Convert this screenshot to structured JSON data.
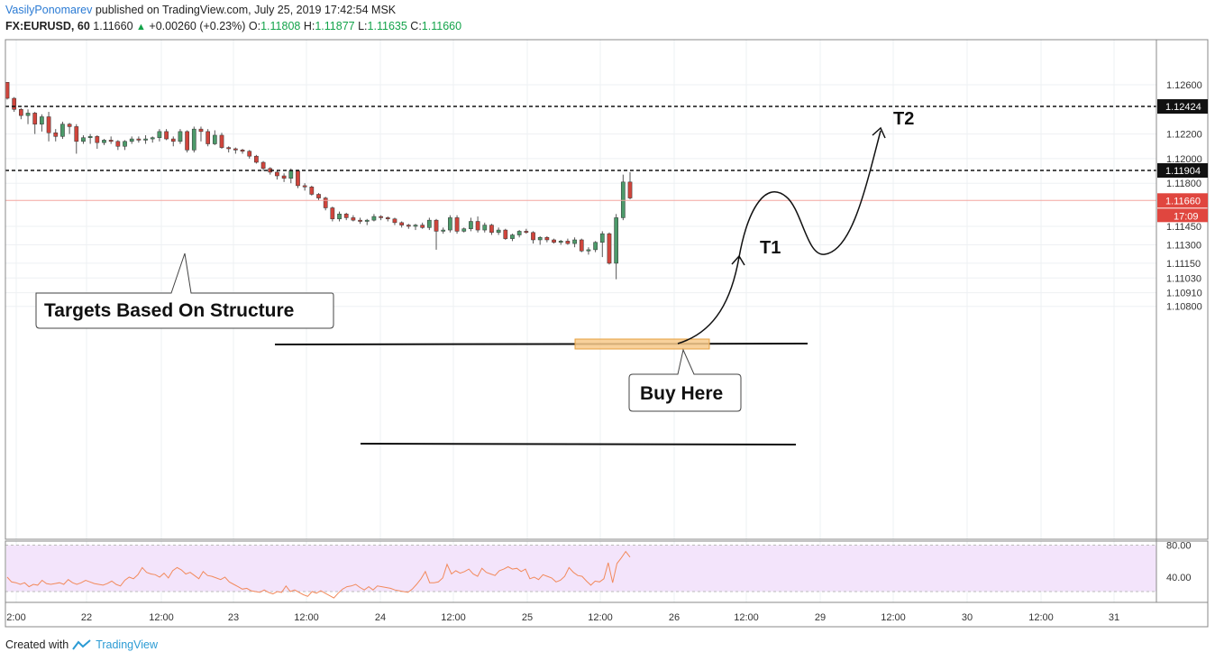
{
  "header": {
    "author": "VasilyPonomarev",
    "published": "published on TradingView.com, July 25, 2019 17:42:54 MSK",
    "symbol": "FX:EURUSD, 60",
    "last": "1.11660",
    "change": "+0.00260 (+0.23%)",
    "o_label": "O:",
    "o_value": "1.11808",
    "h_label": "H:",
    "h_value": "1.11877",
    "l_label": "L:",
    "l_value": "1.11635",
    "c_label": "C:",
    "c_value": "1.11660"
  },
  "footer": {
    "created_with": "Created with",
    "brand": "TradingView"
  },
  "annotations": {
    "targets": "Targets Based On Structure",
    "buy": "Buy Here",
    "t1": "T1",
    "t2": "T2"
  },
  "colors": {
    "up": "#4c9a6a",
    "down": "#d0453c",
    "rsi": "#f28a5c",
    "rsi_band": "#f3e4fb",
    "buy_zone": "#f7c98a"
  },
  "chart_data": {
    "type": "candlestick",
    "symbol": "FX:EURUSD",
    "timeframe": "60",
    "ylim": [
      1.1075,
      1.1273
    ],
    "y_ticks": [
      "1.12600",
      "1.12200",
      "1.12000",
      "1.11800",
      "1.11450",
      "1.11300",
      "1.11150",
      "1.11030",
      "1.10910",
      "1.10800"
    ],
    "y_tick_values": [
      1.126,
      1.122,
      1.12,
      1.118,
      1.1145,
      1.113,
      1.1115,
      1.1103,
      1.1091,
      1.108
    ],
    "x_ticks": [
      "2:00",
      "22",
      "12:00",
      "23",
      "12:00",
      "24",
      "12:00",
      "25",
      "12:00",
      "26",
      "12:00",
      "29",
      "12:00",
      "30",
      "12:00",
      "31"
    ],
    "price_labels": [
      {
        "text": "1.12424",
        "value": 1.12424
      },
      {
        "text": "1.11904",
        "value": 1.11904
      },
      {
        "text": "1.11660",
        "value": 1.1166,
        "countdown": "17:09"
      }
    ],
    "target_lines": [
      1.12424,
      1.11904
    ],
    "support_line": 1.1153,
    "lower_line": 1.1114,
    "buy_zone": [
      1.1152,
      1.1155
    ],
    "candles": [
      [
        1.1262,
        1.1262,
        1.1248,
        1.1249
      ],
      [
        1.1249,
        1.125,
        1.1238,
        1.124
      ],
      [
        1.124,
        1.1241,
        1.1232,
        1.1235
      ],
      [
        1.1235,
        1.124,
        1.1228,
        1.1237
      ],
      [
        1.1237,
        1.1238,
        1.122,
        1.1228
      ],
      [
        1.1228,
        1.1236,
        1.1222,
        1.1234
      ],
      [
        1.1234,
        1.1238,
        1.1214,
        1.1221
      ],
      [
        1.1221,
        1.1224,
        1.1214,
        1.1218
      ],
      [
        1.1218,
        1.123,
        1.1216,
        1.1228
      ],
      [
        1.1228,
        1.1229,
        1.122,
        1.1226
      ],
      [
        1.1226,
        1.1228,
        1.1204,
        1.1214
      ],
      [
        1.1214,
        1.1219,
        1.1212,
        1.1217
      ],
      [
        1.1217,
        1.122,
        1.1212,
        1.1218
      ],
      [
        1.1218,
        1.1219,
        1.1208,
        1.1213
      ],
      [
        1.1213,
        1.1216,
        1.1211,
        1.1215
      ],
      [
        1.1215,
        1.1218,
        1.1212,
        1.1214
      ],
      [
        1.1214,
        1.1215,
        1.1207,
        1.121
      ],
      [
        1.121,
        1.1215,
        1.1207,
        1.1214
      ],
      [
        1.1214,
        1.1218,
        1.1212,
        1.1216
      ],
      [
        1.1216,
        1.1218,
        1.1213,
        1.1215
      ],
      [
        1.1215,
        1.1219,
        1.1212,
        1.1216
      ],
      [
        1.1216,
        1.1218,
        1.1213,
        1.1217
      ],
      [
        1.1217,
        1.1224,
        1.1214,
        1.1222
      ],
      [
        1.1222,
        1.1224,
        1.1215,
        1.1216
      ],
      [
        1.1216,
        1.1218,
        1.121,
        1.1214
      ],
      [
        1.1214,
        1.1224,
        1.1212,
        1.1222
      ],
      [
        1.1222,
        1.1223,
        1.1205,
        1.1207
      ],
      [
        1.1207,
        1.1226,
        1.1205,
        1.1224
      ],
      [
        1.1224,
        1.1226,
        1.1214,
        1.1222
      ],
      [
        1.1222,
        1.1224,
        1.121,
        1.1212
      ],
      [
        1.1212,
        1.1223,
        1.1211,
        1.1219
      ],
      [
        1.1219,
        1.1221,
        1.1208,
        1.1209
      ],
      [
        1.1209,
        1.121,
        1.1205,
        1.1208
      ],
      [
        1.1208,
        1.1209,
        1.1204,
        1.1207
      ],
      [
        1.1207,
        1.1208,
        1.1204,
        1.1206
      ],
      [
        1.1206,
        1.1207,
        1.12,
        1.1202
      ],
      [
        1.1202,
        1.1203,
        1.1196,
        1.1197
      ],
      [
        1.1197,
        1.1198,
        1.119,
        1.1192
      ],
      [
        1.1192,
        1.1193,
        1.1187,
        1.1189
      ],
      [
        1.1189,
        1.119,
        1.1183,
        1.1186
      ],
      [
        1.1186,
        1.1188,
        1.1181,
        1.1184
      ],
      [
        1.1184,
        1.1192,
        1.118,
        1.119
      ],
      [
        1.119,
        1.1191,
        1.1176,
        1.1178
      ],
      [
        1.1178,
        1.118,
        1.1174,
        1.1177
      ],
      [
        1.1177,
        1.1178,
        1.117,
        1.1171
      ],
      [
        1.1171,
        1.1172,
        1.1166,
        1.1168
      ],
      [
        1.1168,
        1.1169,
        1.1158,
        1.116
      ],
      [
        1.116,
        1.1161,
        1.1149,
        1.1151
      ],
      [
        1.1151,
        1.1157,
        1.1149,
        1.1155
      ],
      [
        1.1155,
        1.1156,
        1.115,
        1.1152
      ],
      [
        1.1152,
        1.1154,
        1.1149,
        1.115
      ],
      [
        1.115,
        1.1152,
        1.1147,
        1.1149
      ],
      [
        1.1149,
        1.1151,
        1.1146,
        1.115
      ],
      [
        1.115,
        1.1155,
        1.1149,
        1.1153
      ],
      [
        1.1153,
        1.1154,
        1.115,
        1.1152
      ],
      [
        1.1152,
        1.1153,
        1.1149,
        1.1151
      ],
      [
        1.1151,
        1.1152,
        1.1146,
        1.1148
      ],
      [
        1.1148,
        1.1149,
        1.1144,
        1.1146
      ],
      [
        1.1146,
        1.1147,
        1.1143,
        1.1145
      ],
      [
        1.1145,
        1.1147,
        1.1142,
        1.1146
      ],
      [
        1.1146,
        1.1148,
        1.1143,
        1.1144
      ],
      [
        1.1144,
        1.1152,
        1.1142,
        1.115
      ],
      [
        1.115,
        1.1151,
        1.1126,
        1.1141
      ],
      [
        1.1141,
        1.1144,
        1.1139,
        1.1142
      ],
      [
        1.1142,
        1.1154,
        1.114,
        1.1152
      ],
      [
        1.1152,
        1.1154,
        1.1139,
        1.1141
      ],
      [
        1.1141,
        1.1144,
        1.114,
        1.1143
      ],
      [
        1.1143,
        1.1152,
        1.1141,
        1.1149
      ],
      [
        1.1149,
        1.1153,
        1.114,
        1.1142
      ],
      [
        1.1142,
        1.1148,
        1.114,
        1.1146
      ],
      [
        1.1146,
        1.1147,
        1.1138,
        1.114
      ],
      [
        1.114,
        1.1144,
        1.1138,
        1.1142
      ],
      [
        1.1142,
        1.1143,
        1.1134,
        1.1135
      ],
      [
        1.1135,
        1.1139,
        1.1133,
        1.1138
      ],
      [
        1.1138,
        1.1142,
        1.1136,
        1.1141
      ],
      [
        1.1141,
        1.1143,
        1.1139,
        1.114
      ],
      [
        1.114,
        1.1141,
        1.1131,
        1.1134
      ],
      [
        1.1134,
        1.1137,
        1.113,
        1.1136
      ],
      [
        1.1136,
        1.1137,
        1.1132,
        1.1134
      ],
      [
        1.1134,
        1.1135,
        1.1131,
        1.1132
      ],
      [
        1.1132,
        1.1134,
        1.113,
        1.1133
      ],
      [
        1.1133,
        1.1135,
        1.113,
        1.1131
      ],
      [
        1.1131,
        1.1136,
        1.1128,
        1.1134
      ],
      [
        1.1134,
        1.1135,
        1.1124,
        1.1125
      ],
      [
        1.1125,
        1.1128,
        1.1122,
        1.1126
      ],
      [
        1.1126,
        1.1133,
        1.1124,
        1.1132
      ],
      [
        1.1132,
        1.1141,
        1.112,
        1.1139
      ],
      [
        1.1139,
        1.114,
        1.1114,
        1.1115
      ],
      [
        1.1115,
        1.1155,
        1.1102,
        1.1152
      ],
      [
        1.1152,
        1.1187,
        1.115,
        1.1181
      ],
      [
        1.1181,
        1.1189,
        1.1167,
        1.1168
      ]
    ],
    "rsi": {
      "ylim": [
        20,
        90
      ],
      "ticks": [
        "80.00",
        "40.00"
      ],
      "tick_values": [
        80,
        40
      ],
      "values": [
        40,
        34,
        33,
        31,
        33,
        28,
        31,
        30,
        36,
        32,
        31,
        32,
        33,
        31,
        37,
        33,
        31,
        33,
        36,
        34,
        32,
        31,
        30,
        32,
        35,
        31,
        29,
        36,
        40,
        38,
        43,
        52,
        46,
        44,
        43,
        40,
        45,
        39,
        48,
        52,
        49,
        44,
        46,
        42,
        38,
        47,
        42,
        41,
        39,
        37,
        40,
        34,
        31,
        28,
        25,
        26,
        23,
        22,
        21,
        24,
        21,
        19,
        22,
        21,
        29,
        22,
        24,
        21,
        18,
        16,
        22,
        20,
        23,
        20,
        17,
        14,
        20,
        25,
        28,
        29,
        31,
        27,
        24,
        28,
        24,
        29,
        28,
        27,
        26,
        24,
        23,
        22,
        21,
        25,
        31,
        38,
        47,
        33,
        33,
        34,
        39,
        56,
        44,
        48,
        45,
        47,
        50,
        44,
        41,
        51,
        46,
        44,
        42,
        48,
        50,
        53,
        50,
        51,
        47,
        50,
        38,
        40,
        37,
        43,
        41,
        39,
        34,
        36,
        41,
        52,
        46,
        42,
        41,
        35,
        30,
        35,
        34,
        38,
        58,
        33,
        57,
        64,
        72,
        65
      ]
    }
  }
}
